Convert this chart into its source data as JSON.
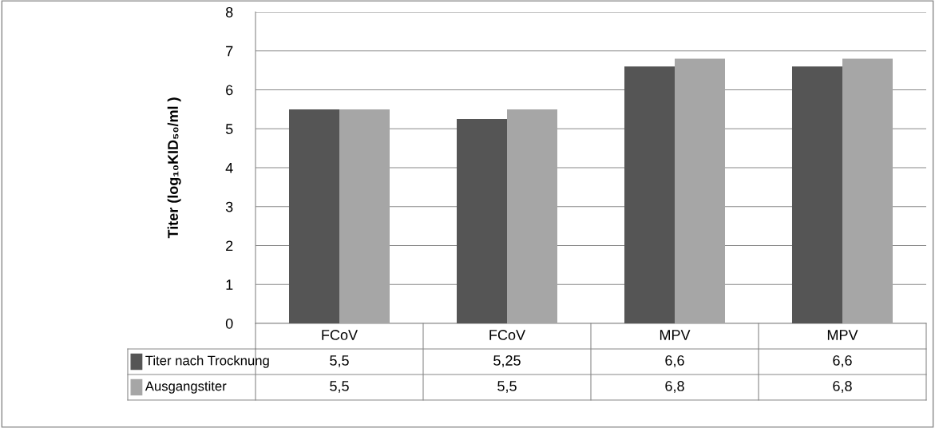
{
  "chart_data": {
    "type": "bar",
    "ylabel": "Titer (log₁₀KID₅₀/ml )",
    "categories": [
      "FCoV",
      "FCoV",
      "MPV",
      "MPV"
    ],
    "series": [
      {
        "name": "Titer nach Trocknung",
        "color": "#555555",
        "values": [
          5.5,
          5.25,
          6.6,
          6.6
        ],
        "value_labels": [
          "5,5",
          "5,25",
          "6,6",
          "6,6"
        ]
      },
      {
        "name": "Ausgangstiter",
        "color": "#a6a6a6",
        "values": [
          5.5,
          5.5,
          6.8,
          6.8
        ],
        "value_labels": [
          "5,5",
          "5,5",
          "6,8",
          "6,8"
        ]
      }
    ],
    "ylim": [
      0,
      8
    ],
    "yticks": [
      0,
      1,
      2,
      3,
      4,
      5,
      6,
      7,
      8
    ],
    "grid": "y",
    "legend": "bottom"
  }
}
